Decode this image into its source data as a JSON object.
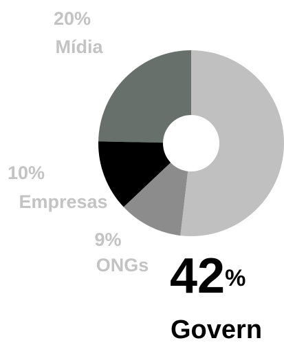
{
  "chart_data": {
    "type": "donut",
    "categories": [
      "Mídia",
      "Empresas",
      "ONGs",
      "Govern"
    ],
    "values": [
      20,
      10,
      9,
      42
    ],
    "value_labels": [
      "20%",
      "10%",
      "9%",
      "42%"
    ],
    "colors": [
      "#68706c",
      "#000000",
      "#8c8c8c",
      "#c0c0c0"
    ]
  }
}
